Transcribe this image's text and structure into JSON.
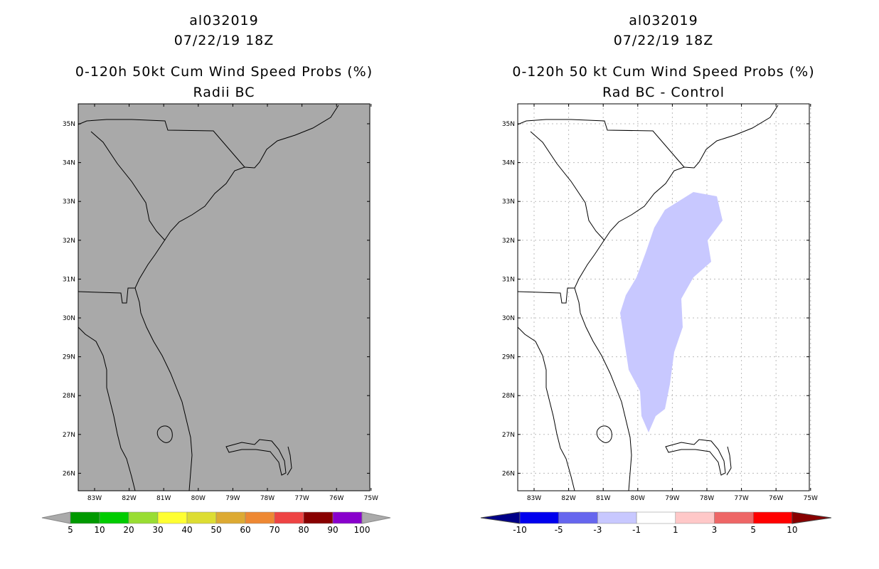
{
  "left": {
    "title_line1": "al032019",
    "title_line2": "07/22/19 18Z",
    "title_line3": "0-120h 50kt Cum Wind Speed Probs (%)",
    "title_line4": "Radii BC",
    "map_fill": "#a9a9a9",
    "legend_labels": [
      "5",
      "10",
      "20",
      "30",
      "40",
      "50",
      "60",
      "70",
      "80",
      "90",
      "100"
    ],
    "legend_colors": [
      "#009900",
      "#00cc00",
      "#99dd33",
      "#ffff33",
      "#dddd33",
      "#ddaa33",
      "#ee8833",
      "#ee4444",
      "#880000",
      "#8800cc"
    ],
    "legend_end_color": "#aaaaaa"
  },
  "right": {
    "title_line1": "al032019",
    "title_line2": "07/22/19 18Z",
    "title_line3": "0-120h 50 kt Cum Wind Speed Probs (%)",
    "title_line4": "Rad BC - Control",
    "region_color": "#c8c8ff",
    "legend_labels": [
      "-10",
      "-5",
      "-3",
      "-1",
      "1",
      "3",
      "5",
      "10"
    ],
    "legend_colors": [
      "#0000ee",
      "#6666ee",
      "#c8c8ff",
      "#ffffff",
      "#ffc8c8",
      "#ee6666",
      "#ff0000"
    ],
    "legend_end_left": "#000088",
    "legend_end_right": "#880000"
  },
  "axes": {
    "lat_labels": [
      "35N",
      "34N",
      "33N",
      "32N",
      "31N",
      "30N",
      "29N",
      "28N",
      "27N",
      "26N"
    ],
    "lon_labels": [
      "83W",
      "82W",
      "81W",
      "80W",
      "79W",
      "78W",
      "77W",
      "76W",
      "75W"
    ]
  }
}
